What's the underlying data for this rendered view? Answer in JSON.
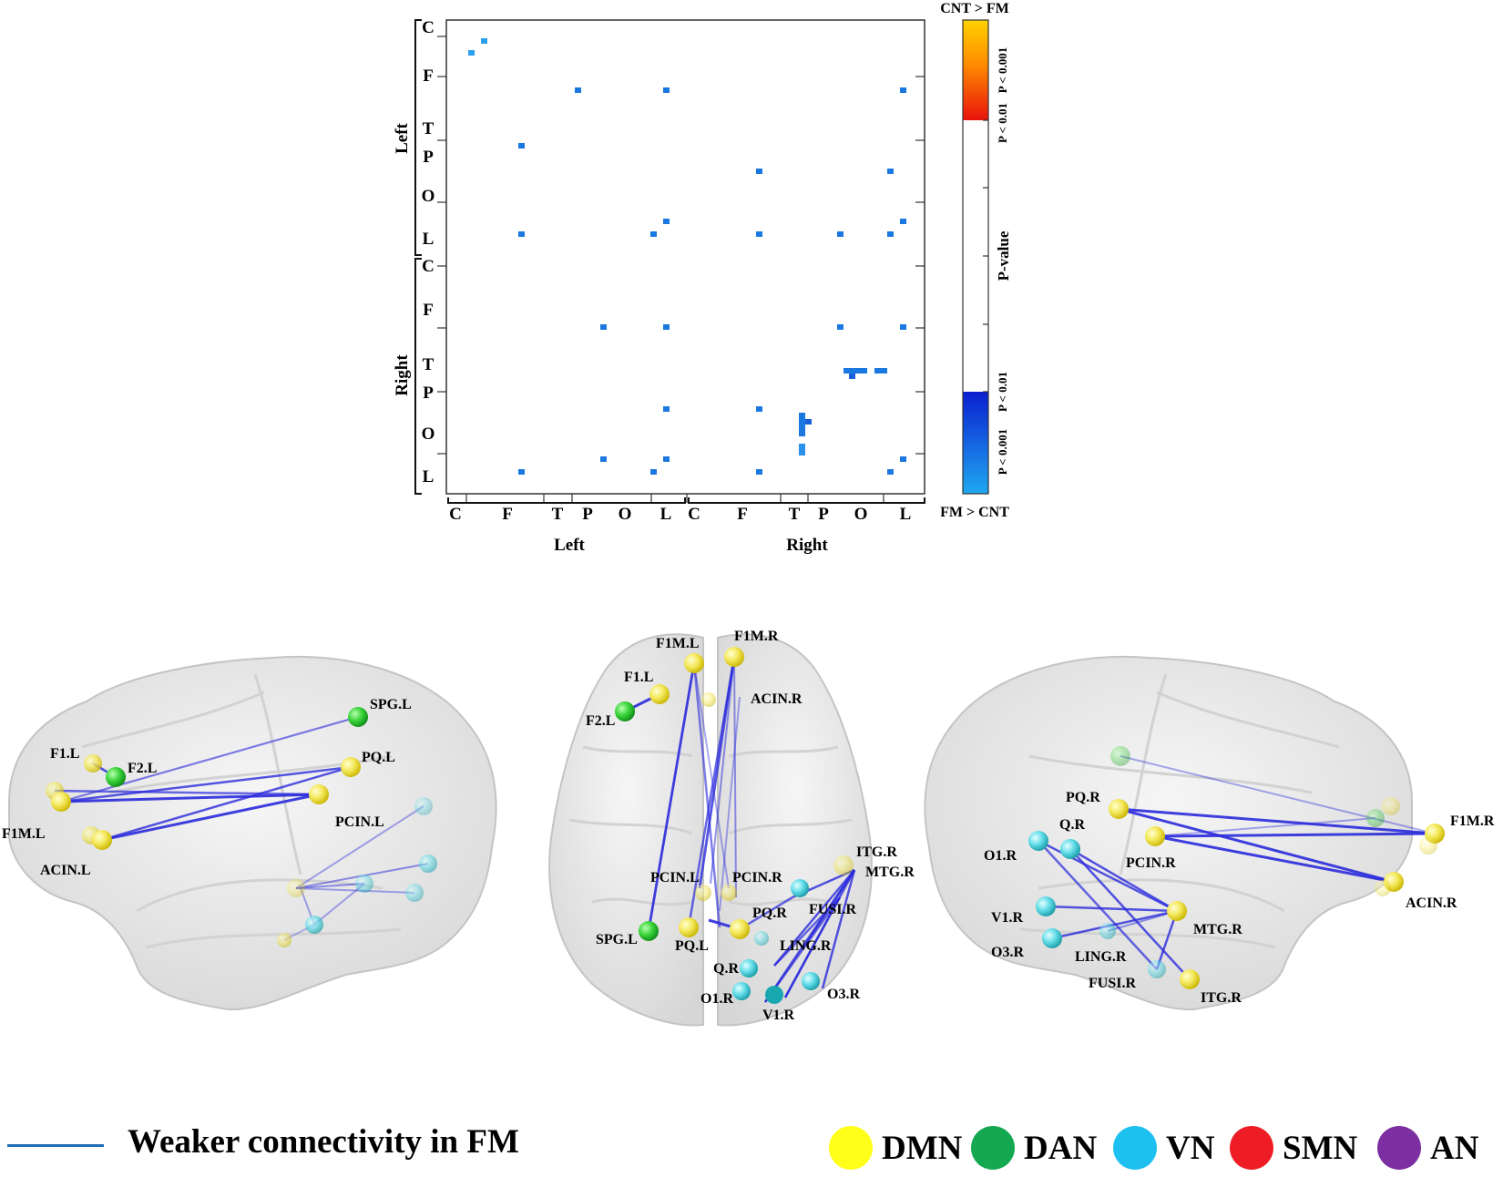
{
  "matrix": {
    "row_groups": [
      {
        "label": "Left",
        "lobes": [
          "C",
          "F",
          "T",
          "P",
          "O",
          "L"
        ]
      },
      {
        "label": "Right",
        "lobes": [
          "C",
          "F",
          "T",
          "P",
          "O",
          "L"
        ]
      }
    ],
    "col_groups": [
      {
        "label": "Left",
        "lobes": [
          "C",
          "F",
          "T",
          "P",
          "O",
          "L"
        ]
      },
      {
        "label": "Right",
        "lobes": [
          "C",
          "F",
          "T",
          "P",
          "O",
          "L"
        ]
      }
    ],
    "top_label": "CNT > FM",
    "bottom_label": "FM > CNT",
    "colorbar": {
      "title": "P-value",
      "ticks_top": [
        "P < 0.001",
        "P < 0.01"
      ],
      "ticks_bottom": [
        "P < 0.01",
        "P < 0.001"
      ],
      "colors": {
        "hot_high": "#ffd200",
        "hot_low": "#e8120c",
        "cold_low": "#0a1fd0",
        "cold_high": "#1fa8f0"
      }
    },
    "cell_color": "#1a78e0"
  },
  "brain_views": {
    "left_lateral": {
      "nodes": [
        "SPG.L",
        "F1.L",
        "F2.L",
        "PQ.L",
        "F1M.L",
        "PCIN.L",
        "ACIN.L"
      ]
    },
    "top": {
      "nodes": [
        "F1M.L",
        "F1M.R",
        "F1.L",
        "F2.L",
        "ACIN.R",
        "ITG.R",
        "MTG.R",
        "PCIN.L",
        "PCIN.R",
        "FUSI.R",
        "PQ.R",
        "SPG.L",
        "PQ.L",
        "LING.R",
        "Q.R",
        "O1.R",
        "V1.R",
        "O3.R"
      ]
    },
    "right_lateral": {
      "nodes": [
        "PQ.R",
        "Q.R",
        "F1M.R",
        "O1.R",
        "PCIN.R",
        "ACIN.R",
        "V1.R",
        "MTG.R",
        "O3.R",
        "LING.R",
        "FUSI.R",
        "ITG.R"
      ]
    }
  },
  "legend": {
    "line_label": "Weaker connectivity in FM",
    "line_color": "#1f6fb5",
    "networks": [
      {
        "name": "DMN",
        "color": "#ffff1a"
      },
      {
        "name": "DAN",
        "color": "#14a850"
      },
      {
        "name": "VN",
        "color": "#1ec0f0"
      },
      {
        "name": "SMN",
        "color": "#ee1c24"
      },
      {
        "name": "AN",
        "color": "#7b2fa0"
      }
    ]
  }
}
